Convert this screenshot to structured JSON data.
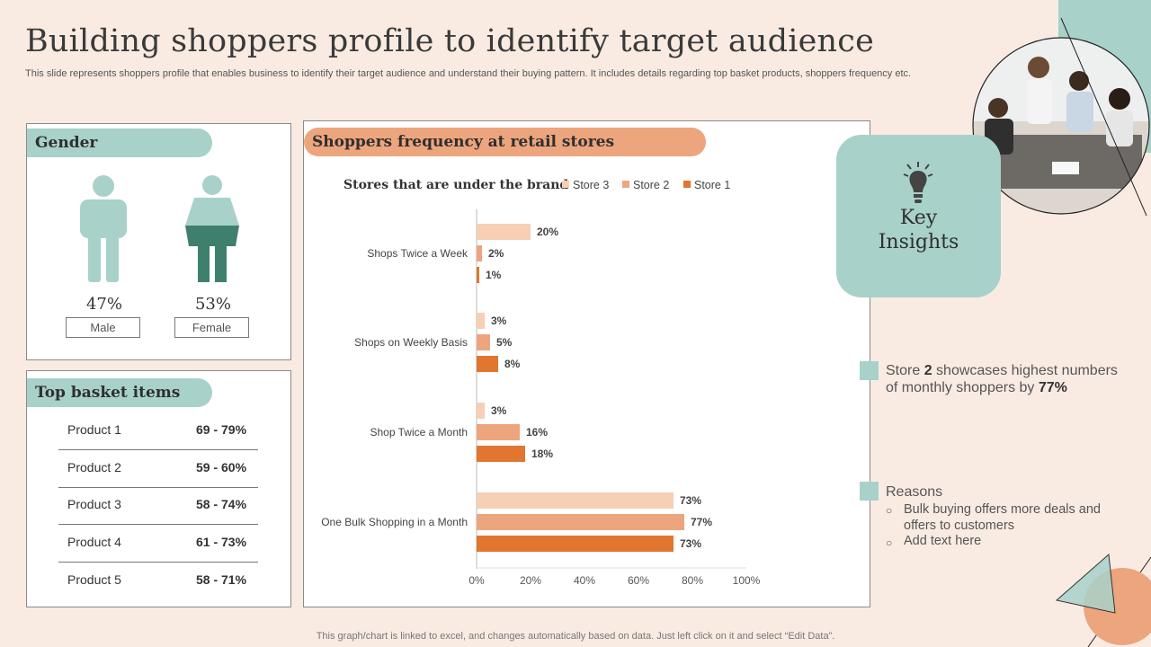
{
  "title": "Building shoppers profile to identify target audience",
  "subtitle": "This slide represents shoppers profile that enables business to identify their target audience and understand their buying pattern. It includes details regarding top basket products, shoppers frequency etc.",
  "gender": {
    "heading": "Gender",
    "male_pct": "47%",
    "female_pct": "53%",
    "male_label": "Male",
    "female_label": "Female"
  },
  "basket": {
    "heading": "Top basket items",
    "items": [
      {
        "name": "Product 1",
        "range": "69 - 79%"
      },
      {
        "name": "Product 2",
        "range": "59 - 60%"
      },
      {
        "name": "Product 3",
        "range": "58 - 74%"
      },
      {
        "name": "Product 4",
        "range": "61 - 73%"
      },
      {
        "name": "Product 5",
        "range": "58 - 71%"
      }
    ]
  },
  "frequency": {
    "heading": "Shoppers frequency at retail stores"
  },
  "chart_data": {
    "type": "bar",
    "orientation": "horizontal",
    "title": "Stores that are under the brand",
    "categories": [
      "Shops Twice a Week",
      "Shops on Weekly Basis",
      "Shop Twice a Month",
      "One Bulk Shopping in a Month"
    ],
    "series": [
      {
        "name": "Store 3",
        "color": "#f6cfb5",
        "values": [
          20,
          3,
          3,
          73
        ]
      },
      {
        "name": "Store 2",
        "color": "#eda57d",
        "values": [
          2,
          5,
          16,
          77
        ]
      },
      {
        "name": "Store 1",
        "color": "#e07630",
        "values": [
          1,
          8,
          18,
          73
        ]
      }
    ],
    "xlim": [
      0,
      100
    ],
    "xticks": [
      "0%",
      "20%",
      "40%",
      "60%",
      "80%",
      "100%"
    ],
    "value_suffix": "%",
    "legend": "top",
    "grid": false
  },
  "insights": {
    "title_line1": "Key",
    "title_line2": "Insights",
    "point1_pre": "Store ",
    "point1_bold1": "2",
    "point1_mid": " showcases highest numbers",
    "point1_line2": "of monthly shoppers by ",
    "point1_bold2": "77%",
    "reasons_label": "Reasons",
    "reason1_line1": "Bulk buying offers more deals and",
    "reason1_line2": "offers to customers",
    "reason2": "Add text here"
  },
  "footnote": "This graph/chart is linked to excel, and changes automatically based on data. Just left click on it and select “Edit Data”.",
  "colors": {
    "teal": "#a8d1c9",
    "teal_dark": "#3f7f6e",
    "orange": "#eda57d",
    "background": "#f9ebe2"
  }
}
